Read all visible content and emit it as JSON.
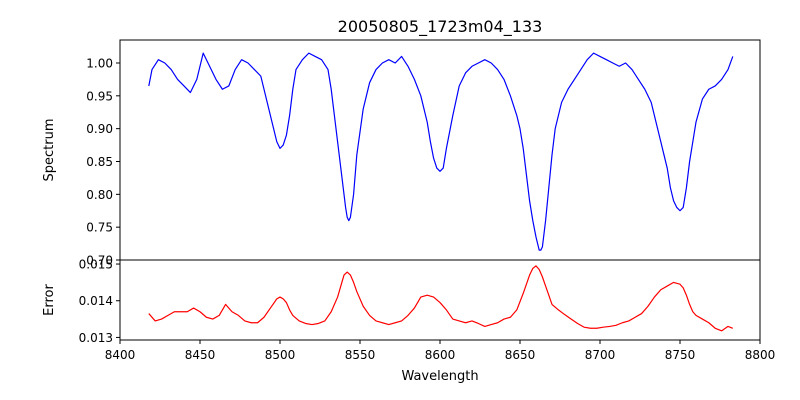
{
  "figure": {
    "title": "20050805_1723m04_133"
  },
  "chart_data": [
    {
      "type": "line",
      "title": "20050805_1723m04_133",
      "xlabel": "",
      "ylabel": "Spectrum",
      "xlim": [
        8400,
        8800
      ],
      "ylim": [
        0.7,
        1.035
      ],
      "yticks": [
        0.7,
        0.75,
        0.8,
        0.85,
        0.9,
        0.95,
        1.0
      ],
      "ytick_labels": [
        "0.70",
        "0.75",
        "0.80",
        "0.85",
        "0.90",
        "0.95",
        "1.00"
      ],
      "grid": false,
      "series": [
        {
          "color": "#0000ff",
          "x": [
            8418,
            8420,
            8424,
            8428,
            8432,
            8436,
            8440,
            8444,
            8448,
            8452,
            8456,
            8460,
            8464,
            8468,
            8472,
            8476,
            8480,
            8484,
            8488,
            8492,
            8494,
            8496,
            8498,
            8500,
            8502,
            8504,
            8506,
            8508,
            8510,
            8514,
            8518,
            8522,
            8526,
            8530,
            8532,
            8534,
            8536,
            8538,
            8540,
            8541,
            8542,
            8543,
            8544,
            8546,
            8548,
            8552,
            8556,
            8560,
            8564,
            8568,
            8572,
            8576,
            8580,
            8584,
            8588,
            8592,
            8594,
            8596,
            8598,
            8600,
            8602,
            8604,
            8608,
            8612,
            8616,
            8620,
            8624,
            8628,
            8632,
            8636,
            8640,
            8644,
            8648,
            8650,
            8652,
            8654,
            8656,
            8658,
            8660,
            8661,
            8662,
            8663,
            8664,
            8665,
            8666,
            8668,
            8670,
            8672,
            8676,
            8680,
            8684,
            8688,
            8692,
            8696,
            8700,
            8704,
            8708,
            8712,
            8716,
            8720,
            8724,
            8728,
            8732,
            8736,
            8738,
            8740,
            8742,
            8744,
            8746,
            8748,
            8750,
            8752,
            8754,
            8756,
            8758,
            8760,
            8764,
            8768,
            8772,
            8776,
            8780,
            8783
          ],
          "values": [
            0.965,
            0.99,
            1.005,
            1.0,
            0.99,
            0.975,
            0.965,
            0.955,
            0.975,
            1.015,
            0.995,
            0.975,
            0.96,
            0.965,
            0.99,
            1.005,
            1.0,
            0.99,
            0.98,
            0.94,
            0.92,
            0.9,
            0.88,
            0.87,
            0.875,
            0.89,
            0.92,
            0.96,
            0.99,
            1.005,
            1.015,
            1.01,
            1.005,
            0.99,
            0.96,
            0.92,
            0.88,
            0.84,
            0.8,
            0.78,
            0.765,
            0.76,
            0.765,
            0.8,
            0.86,
            0.93,
            0.97,
            0.99,
            1.0,
            1.005,
            1.0,
            1.01,
            0.995,
            0.975,
            0.95,
            0.91,
            0.88,
            0.855,
            0.84,
            0.835,
            0.84,
            0.87,
            0.92,
            0.965,
            0.985,
            0.995,
            1.0,
            1.005,
            1.0,
            0.99,
            0.975,
            0.95,
            0.92,
            0.9,
            0.87,
            0.83,
            0.79,
            0.76,
            0.735,
            0.725,
            0.715,
            0.715,
            0.72,
            0.74,
            0.76,
            0.81,
            0.86,
            0.9,
            0.94,
            0.96,
            0.975,
            0.99,
            1.005,
            1.015,
            1.01,
            1.005,
            1.0,
            0.995,
            1.0,
            0.99,
            0.975,
            0.96,
            0.94,
            0.9,
            0.88,
            0.86,
            0.84,
            0.81,
            0.79,
            0.78,
            0.775,
            0.78,
            0.81,
            0.85,
            0.88,
            0.91,
            0.945,
            0.96,
            0.965,
            0.975,
            0.99,
            1.01
          ]
        }
      ]
    },
    {
      "type": "line",
      "title": "",
      "xlabel": "Wavelength",
      "ylabel": "Error",
      "xlim": [
        8400,
        8800
      ],
      "ylim": [
        0.01293,
        0.01511
      ],
      "xticks": [
        8400,
        8450,
        8500,
        8550,
        8600,
        8650,
        8700,
        8750,
        8800
      ],
      "xtick_labels": [
        "8400",
        "8450",
        "8500",
        "8550",
        "8600",
        "8650",
        "8700",
        "8750",
        "8800"
      ],
      "yticks": [
        0.013,
        0.014,
        0.015
      ],
      "ytick_labels": [
        "0.013",
        "0.014",
        "0.015"
      ],
      "grid": false,
      "series": [
        {
          "color": "#ff0000",
          "x": [
            8418,
            8422,
            8426,
            8430,
            8434,
            8438,
            8442,
            8446,
            8450,
            8454,
            8458,
            8462,
            8466,
            8470,
            8474,
            8478,
            8482,
            8486,
            8490,
            8494,
            8498,
            8500,
            8502,
            8504,
            8506,
            8508,
            8512,
            8516,
            8520,
            8524,
            8528,
            8532,
            8536,
            8538,
            8540,
            8542,
            8544,
            8546,
            8548,
            8552,
            8556,
            8560,
            8564,
            8568,
            8572,
            8576,
            8580,
            8584,
            8588,
            8592,
            8596,
            8600,
            8604,
            8608,
            8612,
            8616,
            8620,
            8624,
            8628,
            8632,
            8636,
            8640,
            8644,
            8648,
            8652,
            8656,
            8658,
            8660,
            8662,
            8664,
            8666,
            8668,
            8670,
            8674,
            8678,
            8682,
            8686,
            8690,
            8694,
            8698,
            8702,
            8706,
            8710,
            8714,
            8718,
            8722,
            8726,
            8730,
            8734,
            8738,
            8742,
            8746,
            8750,
            8752,
            8754,
            8756,
            8758,
            8760,
            8764,
            8768,
            8772,
            8776,
            8780,
            8783
          ],
          "values": [
            0.01365,
            0.01345,
            0.0135,
            0.0136,
            0.0137,
            0.0137,
            0.0137,
            0.0138,
            0.0137,
            0.01355,
            0.0135,
            0.0136,
            0.0139,
            0.0137,
            0.0136,
            0.01345,
            0.0134,
            0.0134,
            0.01355,
            0.0138,
            0.01405,
            0.0141,
            0.01405,
            0.01395,
            0.01375,
            0.0136,
            0.01345,
            0.01338,
            0.01335,
            0.01338,
            0.01345,
            0.0137,
            0.0141,
            0.0144,
            0.0147,
            0.01478,
            0.0147,
            0.0145,
            0.01425,
            0.01385,
            0.0136,
            0.01345,
            0.0134,
            0.01335,
            0.0134,
            0.01345,
            0.0136,
            0.0138,
            0.0141,
            0.01415,
            0.0141,
            0.01395,
            0.01375,
            0.0135,
            0.01345,
            0.0134,
            0.01345,
            0.01338,
            0.0133,
            0.01335,
            0.0134,
            0.0135,
            0.01355,
            0.01375,
            0.0142,
            0.0147,
            0.01488,
            0.01495,
            0.01485,
            0.01465,
            0.0144,
            0.01415,
            0.0139,
            0.01375,
            0.01362,
            0.0135,
            0.01338,
            0.01328,
            0.01325,
            0.01325,
            0.01328,
            0.0133,
            0.01333,
            0.0134,
            0.01345,
            0.01355,
            0.01365,
            0.01385,
            0.0141,
            0.0143,
            0.0144,
            0.0145,
            0.01445,
            0.01435,
            0.01415,
            0.0139,
            0.0137,
            0.0136,
            0.0135,
            0.0134,
            0.01325,
            0.01318,
            0.0133,
            0.01325
          ]
        }
      ]
    }
  ]
}
